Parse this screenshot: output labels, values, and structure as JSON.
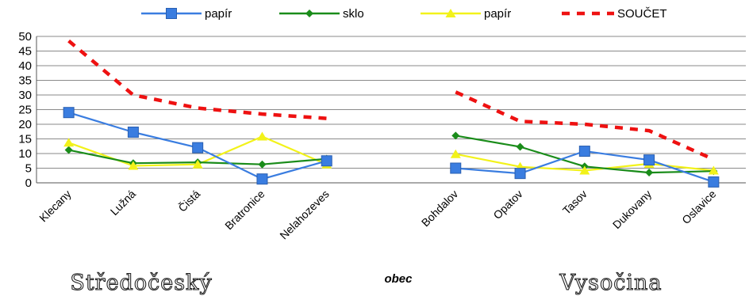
{
  "chart_data": {
    "type": "line",
    "categories": [
      "Klecany",
      "Lužná",
      "Čistá",
      "Bratronice",
      "Nelahozeves",
      "",
      "Bohdalov",
      "Opatov",
      "Tasov",
      "Dukovany",
      "Oslavice"
    ],
    "groups": [
      {
        "label": "Středočeský",
        "categories": [
          "Klecany",
          "Lužná",
          "Čistá",
          "Bratronice",
          "Nelahozeves"
        ]
      },
      {
        "label": "Vysočina",
        "categories": [
          "Bohdalov",
          "Opatov",
          "Tasov",
          "Dukovany",
          "Oslavice"
        ]
      }
    ],
    "xlabel": "obec",
    "ylabel": "",
    "ylim": [
      0,
      50
    ],
    "yticks": [
      0,
      5,
      10,
      15,
      20,
      25,
      30,
      35,
      40,
      45,
      50
    ],
    "grid": true,
    "legend_position": "top",
    "series": [
      {
        "name": "papír",
        "color": "#3a7de0",
        "marker": "square",
        "dash": "solid",
        "values": [
          24,
          17.3,
          12,
          1.3,
          7.5,
          null,
          5,
          3.2,
          10.8,
          7.8,
          0.3
        ]
      },
      {
        "name": "sklo",
        "color": "#1a8c1a",
        "marker": "diamond",
        "dash": "solid",
        "values": [
          11.2,
          6.7,
          7,
          6.3,
          8.2,
          null,
          16.1,
          12.3,
          5.6,
          3.5,
          4
        ]
      },
      {
        "name": "papír",
        "color": "#f2f21a",
        "marker": "triangle",
        "dash": "solid",
        "values": [
          13.7,
          5.8,
          6.3,
          15.8,
          6.3,
          null,
          9.8,
          5.5,
          4.2,
          6.5,
          4.2
        ]
      },
      {
        "name": "SOUČET",
        "color": "#ee1111",
        "marker": "none",
        "dash": "dashed",
        "values": [
          48.5,
          30,
          25.5,
          23.5,
          22,
          null,
          31,
          21,
          20,
          17.8,
          8
        ]
      }
    ]
  }
}
